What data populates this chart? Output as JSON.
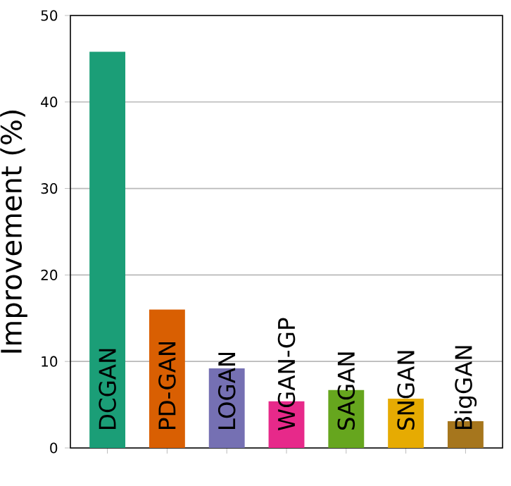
{
  "chart_data": {
    "type": "bar",
    "ylabel": "Improvement (%)",
    "categories": [
      "DCGAN",
      "PD-GAN",
      "LOGAN",
      "WGAN-GP",
      "SAGAN",
      "SNGAN",
      "BigGAN"
    ],
    "values": [
      45.8,
      16.0,
      9.2,
      5.4,
      6.7,
      5.7,
      3.1
    ],
    "colors": [
      "#1b9e77",
      "#d95f02",
      "#7570b3",
      "#e7298a",
      "#66a61e",
      "#e6ab02",
      "#a6761d"
    ],
    "ylim": [
      0,
      50
    ],
    "yticks": [
      0,
      10,
      20,
      30,
      40,
      50
    ],
    "grid": "y",
    "tick_labels": "y"
  }
}
